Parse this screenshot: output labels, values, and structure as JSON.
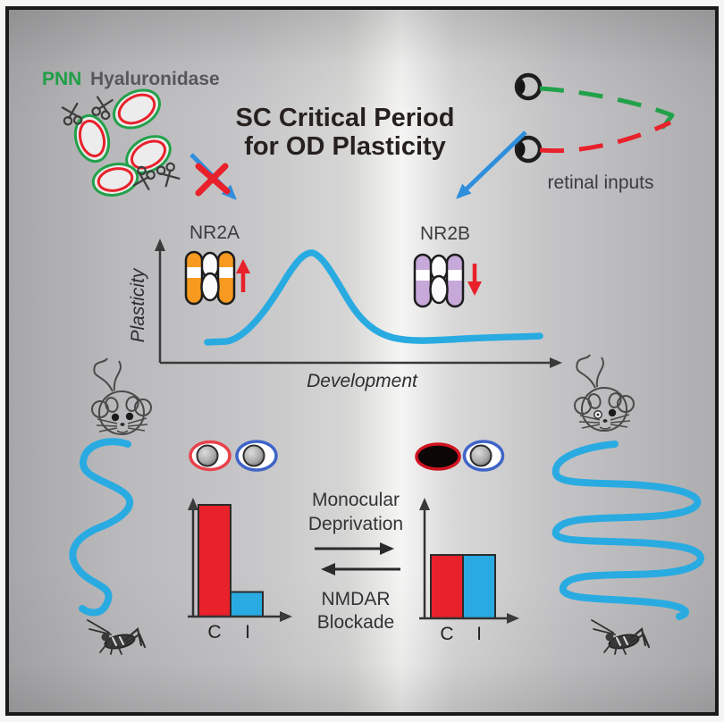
{
  "frame": {
    "border_color": "#1a1a1a"
  },
  "colors": {
    "accent_blue": "#29abe2",
    "signal_red": "#e8212b",
    "pnn_green": "#22a14b",
    "nr2a_orange": "#f79a1f",
    "nr2b_purple": "#c6a8d9",
    "arrow_blue": "#2f8fdd",
    "ink": "#3c3c3e"
  },
  "pnn": {
    "label": "PNN",
    "enzyme_label": "Hyaluronidase"
  },
  "title": {
    "line1": "SC Critical Period",
    "line2": "for OD Plasticity"
  },
  "retina": {
    "label": "retinal inputs"
  },
  "receptors": {
    "nr2a": {
      "label": "NR2A",
      "change": "up"
    },
    "nr2b": {
      "label": "NR2B",
      "change": "down"
    }
  },
  "dev_plot": {
    "y_label": "Plasticity",
    "x_label": "Development"
  },
  "transition": {
    "forward": {
      "line1": "Monocular",
      "line2": "Deprivation"
    },
    "reverse": {
      "line1": "NMDAR",
      "line2": "Blockade"
    }
  },
  "od_charts": {
    "normal": {
      "bars": [
        {
          "label": "C",
          "value": 1.0,
          "color": "#e8212b"
        },
        {
          "label": "I",
          "value": 0.22,
          "color": "#29abe2"
        }
      ]
    },
    "deprived": {
      "bars": [
        {
          "label": "C",
          "value": 0.55,
          "color": "#e8212b"
        },
        {
          "label": "I",
          "value": 0.55,
          "color": "#29abe2"
        }
      ]
    }
  }
}
